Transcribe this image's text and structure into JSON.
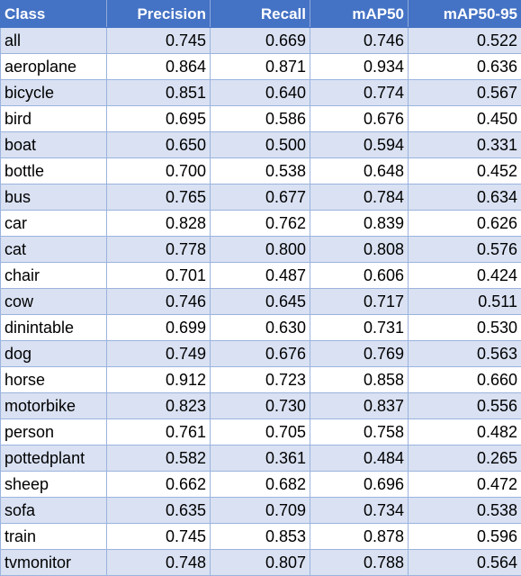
{
  "table": {
    "headers": [
      "Class",
      "Precision",
      "Recall",
      "mAP50",
      "mAP50-95"
    ],
    "rows": [
      [
        "all",
        "0.745",
        "0.669",
        "0.746",
        "0.522"
      ],
      [
        "aeroplane",
        "0.864",
        "0.871",
        "0.934",
        "0.636"
      ],
      [
        "bicycle",
        "0.851",
        "0.640",
        "0.774",
        "0.567"
      ],
      [
        "bird",
        "0.695",
        "0.586",
        "0.676",
        "0.450"
      ],
      [
        "boat",
        "0.650",
        "0.500",
        "0.594",
        "0.331"
      ],
      [
        "bottle",
        "0.700",
        "0.538",
        "0.648",
        "0.452"
      ],
      [
        "bus",
        "0.765",
        "0.677",
        "0.784",
        "0.634"
      ],
      [
        "car",
        "0.828",
        "0.762",
        "0.839",
        "0.626"
      ],
      [
        "cat",
        "0.778",
        "0.800",
        "0.808",
        "0.576"
      ],
      [
        "chair",
        "0.701",
        "0.487",
        "0.606",
        "0.424"
      ],
      [
        "cow",
        "0.746",
        "0.645",
        "0.717",
        "0.511"
      ],
      [
        "dinintable",
        "0.699",
        "0.630",
        "0.731",
        "0.530"
      ],
      [
        "dog",
        "0.749",
        "0.676",
        "0.769",
        "0.563"
      ],
      [
        "horse",
        "0.912",
        "0.723",
        "0.858",
        "0.660"
      ],
      [
        "motorbike",
        "0.823",
        "0.730",
        "0.837",
        "0.556"
      ],
      [
        "person",
        "0.761",
        "0.705",
        "0.758",
        "0.482"
      ],
      [
        "pottedplant",
        "0.582",
        "0.361",
        "0.484",
        "0.265"
      ],
      [
        "sheep",
        "0.662",
        "0.682",
        "0.696",
        "0.472"
      ],
      [
        "sofa",
        "0.635",
        "0.709",
        "0.734",
        "0.538"
      ],
      [
        "train",
        "0.745",
        "0.853",
        "0.878",
        "0.596"
      ],
      [
        "tvmonitor",
        "0.748",
        "0.807",
        "0.788",
        "0.564"
      ]
    ]
  },
  "colors": {
    "header_bg": "#4472C4",
    "header_text": "#ffffff",
    "band_row": "#D9E1F2",
    "plain_row": "#ffffff",
    "border": "#9bb3de"
  }
}
